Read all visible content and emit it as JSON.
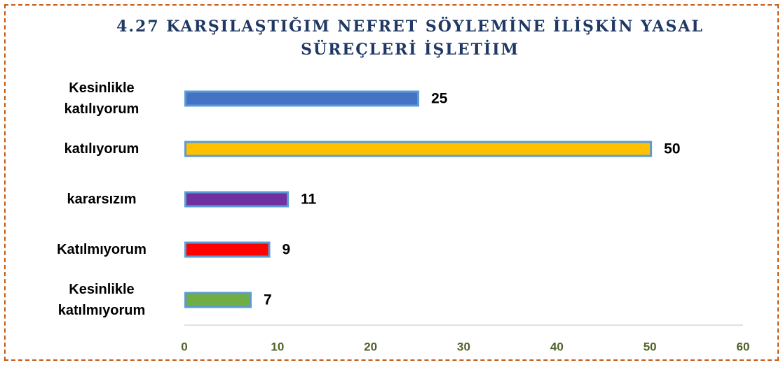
{
  "chart_data": {
    "type": "barh",
    "title": "4.27 KARŞILAŞTIĞIM NEFRET SÖYLEMİNE İLİŞKİN YASAL SÜREÇLERİ İŞLETİIM",
    "categories": [
      "Kesinlikle katılıyorum",
      "katılıyorum",
      "kararsızım",
      "Katılmıyorum",
      "Kesinlikle katılmıyorum"
    ],
    "values": [
      25,
      50,
      11,
      9,
      7
    ],
    "colors": [
      "#4472c4",
      "#ffc000",
      "#7030a0",
      "#ff0000",
      "#70ad47"
    ],
    "edge_color": "#5b9bd5",
    "xlim": [
      0,
      60
    ],
    "xticks": [
      0,
      10,
      20,
      30,
      40,
      50,
      60
    ]
  }
}
